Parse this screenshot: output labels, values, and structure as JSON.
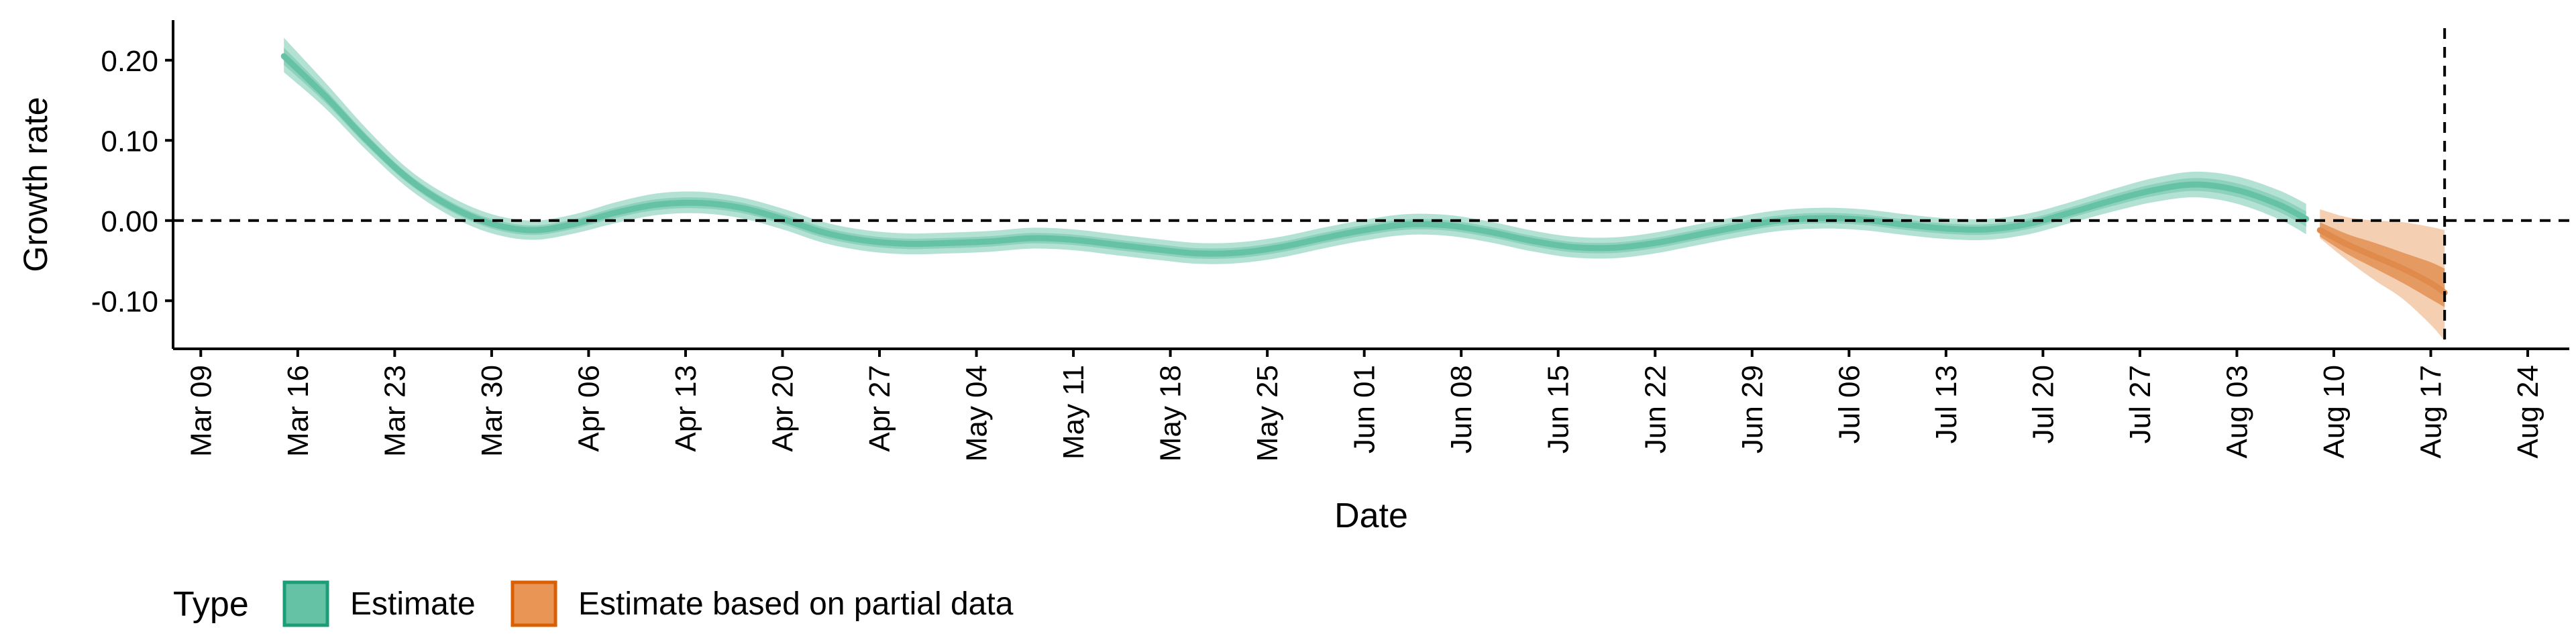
{
  "chart_data": {
    "type": "area",
    "xlabel": "Date",
    "ylabel": "Growth rate",
    "x_axis_type": "date",
    "x_range": [
      "2020-03-07",
      "2020-08-27"
    ],
    "ylim": [
      -0.16,
      0.25
    ],
    "y_ticks": [
      {
        "value": 0.2,
        "label": "0.20"
      },
      {
        "value": 0.1,
        "label": "0.10"
      },
      {
        "value": 0.0,
        "label": "0.00"
      },
      {
        "value": -0.1,
        "label": "-0.10"
      }
    ],
    "x_ticks": [
      {
        "date": "2020-03-09",
        "label": "Mar 09"
      },
      {
        "date": "2020-03-16",
        "label": "Mar 16"
      },
      {
        "date": "2020-03-23",
        "label": "Mar 23"
      },
      {
        "date": "2020-03-30",
        "label": "Mar 30"
      },
      {
        "date": "2020-04-06",
        "label": "Apr 06"
      },
      {
        "date": "2020-04-13",
        "label": "Apr 13"
      },
      {
        "date": "2020-04-20",
        "label": "Apr 20"
      },
      {
        "date": "2020-04-27",
        "label": "Apr 27"
      },
      {
        "date": "2020-05-04",
        "label": "May 04"
      },
      {
        "date": "2020-05-11",
        "label": "May 11"
      },
      {
        "date": "2020-05-18",
        "label": "May 18"
      },
      {
        "date": "2020-05-25",
        "label": "May 25"
      },
      {
        "date": "2020-06-01",
        "label": "Jun 01"
      },
      {
        "date": "2020-06-08",
        "label": "Jun 08"
      },
      {
        "date": "2020-06-15",
        "label": "Jun 15"
      },
      {
        "date": "2020-06-22",
        "label": "Jun 22"
      },
      {
        "date": "2020-06-29",
        "label": "Jun 29"
      },
      {
        "date": "2020-07-06",
        "label": "Jul 06"
      },
      {
        "date": "2020-07-13",
        "label": "Jul 13"
      },
      {
        "date": "2020-07-20",
        "label": "Jul 20"
      },
      {
        "date": "2020-07-27",
        "label": "Jul 27"
      },
      {
        "date": "2020-08-03",
        "label": "Aug 03"
      },
      {
        "date": "2020-08-10",
        "label": "Aug 10"
      },
      {
        "date": "2020-08-17",
        "label": "Aug 17"
      },
      {
        "date": "2020-08-24",
        "label": "Aug 24"
      }
    ],
    "hline_y": 0,
    "vline_date": "2020-08-18",
    "grid": false,
    "legend_position": "bottom-left",
    "legend_title": "Type",
    "series": [
      {
        "name": "Estimate",
        "color": "#66c2a5",
        "band_colors": {
          "outer": "#b3e2d4",
          "inner": "#8ed2bb",
          "line": "#66c2a5"
        },
        "points": [
          {
            "date": "2020-03-15",
            "y": 0.205,
            "lo90": 0.185,
            "hi90": 0.228,
            "lo50": 0.196,
            "hi50": 0.215
          },
          {
            "date": "2020-03-18",
            "y": 0.155,
            "lo90": 0.14,
            "hi90": 0.172
          },
          {
            "date": "2020-03-21",
            "y": 0.1,
            "lo90": 0.087,
            "hi90": 0.114
          },
          {
            "date": "2020-03-24",
            "y": 0.052,
            "lo90": 0.04,
            "hi90": 0.064
          },
          {
            "date": "2020-03-27",
            "y": 0.018,
            "lo90": 0.006,
            "hi90": 0.03
          },
          {
            "date": "2020-03-30",
            "y": -0.004,
            "lo90": -0.016,
            "hi90": 0.008
          },
          {
            "date": "2020-04-02",
            "y": -0.012,
            "lo90": -0.024,
            "hi90": 0.0
          },
          {
            "date": "2020-04-05",
            "y": -0.004,
            "lo90": -0.016,
            "hi90": 0.008
          },
          {
            "date": "2020-04-08",
            "y": 0.01,
            "lo90": -0.003,
            "hi90": 0.023
          },
          {
            "date": "2020-04-11",
            "y": 0.02,
            "lo90": 0.007,
            "hi90": 0.034
          },
          {
            "date": "2020-04-14",
            "y": 0.022,
            "lo90": 0.009,
            "hi90": 0.036
          },
          {
            "date": "2020-04-17",
            "y": 0.016,
            "lo90": 0.003,
            "hi90": 0.029
          },
          {
            "date": "2020-04-20",
            "y": 0.002,
            "lo90": -0.011,
            "hi90": 0.015
          },
          {
            "date": "2020-04-23",
            "y": -0.015,
            "lo90": -0.028,
            "hi90": -0.002
          },
          {
            "date": "2020-04-26",
            "y": -0.025,
            "lo90": -0.038,
            "hi90": -0.012
          },
          {
            "date": "2020-04-29",
            "y": -0.029,
            "lo90": -0.042,
            "hi90": -0.016
          },
          {
            "date": "2020-05-02",
            "y": -0.028,
            "lo90": -0.041,
            "hi90": -0.015
          },
          {
            "date": "2020-05-05",
            "y": -0.026,
            "lo90": -0.039,
            "hi90": -0.013
          },
          {
            "date": "2020-05-08",
            "y": -0.022,
            "lo90": -0.035,
            "hi90": -0.009
          },
          {
            "date": "2020-05-11",
            "y": -0.024,
            "lo90": -0.037,
            "hi90": -0.011
          },
          {
            "date": "2020-05-14",
            "y": -0.03,
            "lo90": -0.043,
            "hi90": -0.017
          },
          {
            "date": "2020-05-17",
            "y": -0.036,
            "lo90": -0.049,
            "hi90": -0.023
          },
          {
            "date": "2020-05-20",
            "y": -0.041,
            "lo90": -0.054,
            "hi90": -0.028
          },
          {
            "date": "2020-05-23",
            "y": -0.04,
            "lo90": -0.053,
            "hi90": -0.027
          },
          {
            "date": "2020-05-26",
            "y": -0.033,
            "lo90": -0.046,
            "hi90": -0.02
          },
          {
            "date": "2020-05-29",
            "y": -0.022,
            "lo90": -0.035,
            "hi90": -0.009
          },
          {
            "date": "2020-06-01",
            "y": -0.012,
            "lo90": -0.025,
            "hi90": 0.001
          },
          {
            "date": "2020-06-04",
            "y": -0.005,
            "lo90": -0.018,
            "hi90": 0.008
          },
          {
            "date": "2020-06-07",
            "y": -0.006,
            "lo90": -0.019,
            "hi90": 0.007
          },
          {
            "date": "2020-06-10",
            "y": -0.014,
            "lo90": -0.027,
            "hi90": -0.001
          },
          {
            "date": "2020-06-13",
            "y": -0.025,
            "lo90": -0.038,
            "hi90": -0.012
          },
          {
            "date": "2020-06-16",
            "y": -0.033,
            "lo90": -0.046,
            "hi90": -0.02
          },
          {
            "date": "2020-06-19",
            "y": -0.034,
            "lo90": -0.047,
            "hi90": -0.021
          },
          {
            "date": "2020-06-22",
            "y": -0.028,
            "lo90": -0.041,
            "hi90": -0.015
          },
          {
            "date": "2020-06-25",
            "y": -0.018,
            "lo90": -0.031,
            "hi90": -0.005
          },
          {
            "date": "2020-06-28",
            "y": -0.008,
            "lo90": -0.021,
            "hi90": 0.005
          },
          {
            "date": "2020-07-01",
            "y": 0.0,
            "lo90": -0.013,
            "hi90": 0.013
          },
          {
            "date": "2020-07-04",
            "y": 0.003,
            "lo90": -0.01,
            "hi90": 0.016
          },
          {
            "date": "2020-07-07",
            "y": 0.001,
            "lo90": -0.012,
            "hi90": 0.014
          },
          {
            "date": "2020-07-10",
            "y": -0.005,
            "lo90": -0.018,
            "hi90": 0.008
          },
          {
            "date": "2020-07-13",
            "y": -0.01,
            "lo90": -0.023,
            "hi90": 0.003
          },
          {
            "date": "2020-07-16",
            "y": -0.011,
            "lo90": -0.024,
            "hi90": 0.002
          },
          {
            "date": "2020-07-19",
            "y": -0.004,
            "lo90": -0.017,
            "hi90": 0.009
          },
          {
            "date": "2020-07-22",
            "y": 0.01,
            "lo90": -0.003,
            "hi90": 0.023
          },
          {
            "date": "2020-07-25",
            "y": 0.025,
            "lo90": 0.011,
            "hi90": 0.039
          },
          {
            "date": "2020-07-28",
            "y": 0.038,
            "lo90": 0.023,
            "hi90": 0.053
          },
          {
            "date": "2020-07-31",
            "y": 0.045,
            "lo90": 0.029,
            "hi90": 0.061
          },
          {
            "date": "2020-08-03",
            "y": 0.038,
            "lo90": 0.021,
            "hi90": 0.055
          },
          {
            "date": "2020-08-06",
            "y": 0.02,
            "lo90": 0.002,
            "hi90": 0.038
          },
          {
            "date": "2020-08-08",
            "y": 0.002,
            "lo90": -0.017,
            "hi90": 0.021
          }
        ]
      },
      {
        "name": "Estimate based on partial data",
        "color": "#e89556",
        "band_colors": {
          "outer": "#f5cfb2",
          "inner": "#e59a62",
          "line": "#e08a4b"
        },
        "points": [
          {
            "date": "2020-08-09",
            "y": -0.012,
            "lo90": -0.022,
            "hi90": 0.014,
            "lo50": -0.02,
            "hi50": -0.002
          },
          {
            "date": "2020-08-11",
            "y": -0.03,
            "lo90": -0.05,
            "hi90": 0.004,
            "lo50": -0.042,
            "hi50": -0.017
          },
          {
            "date": "2020-08-13",
            "y": -0.045,
            "lo90": -0.075,
            "hi90": 0.0,
            "lo50": -0.06,
            "hi50": -0.028
          },
          {
            "date": "2020-08-15",
            "y": -0.06,
            "lo90": -0.098,
            "hi90": -0.002,
            "lo50": -0.078,
            "hi50": -0.04
          },
          {
            "date": "2020-08-17",
            "y": -0.078,
            "lo90": -0.13,
            "hi90": -0.008,
            "lo50": -0.098,
            "hi50": -0.052
          },
          {
            "date": "2020-08-18",
            "y": -0.09,
            "lo90": -0.15,
            "hi90": -0.012,
            "lo50": -0.108,
            "hi50": -0.06
          }
        ]
      }
    ]
  }
}
